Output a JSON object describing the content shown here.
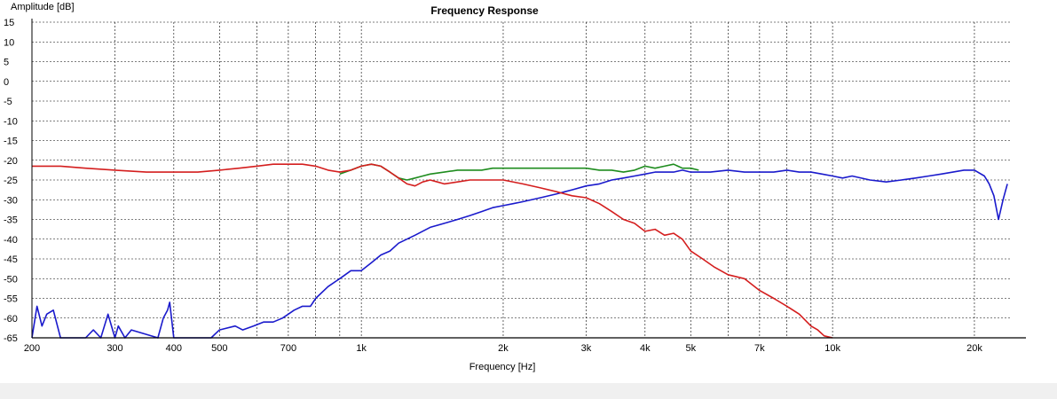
{
  "chart_data": {
    "type": "line",
    "title": "Frequency Response",
    "xlabel": "Frequency [Hz]",
    "ylabel": "Amplitude [dB]",
    "x_scale": "log",
    "xlim": [
      200,
      24000
    ],
    "ylim": [
      -65,
      15
    ],
    "grid": true,
    "major_x_gridlines": [
      200,
      300,
      400,
      500,
      600,
      700,
      800,
      900,
      1000,
      2000,
      3000,
      4000,
      5000,
      6000,
      7000,
      8000,
      9000,
      10000,
      20000
    ],
    "x_tick_values": [
      200,
      300,
      400,
      500,
      700,
      1000,
      2000,
      3000,
      4000,
      5000,
      7000,
      10000,
      20000
    ],
    "x_tick_labels": [
      "200",
      "300",
      "400",
      "500",
      "700",
      "1k",
      "2k",
      "3k",
      "4k",
      "5k",
      "7k",
      "10k",
      "20k"
    ],
    "y_ticks": [
      15,
      10,
      5,
      0,
      -5,
      -10,
      -15,
      -20,
      -25,
      -30,
      -35,
      -40,
      -45,
      -50,
      -55,
      -60,
      -65
    ],
    "y_tick_labels": [
      "15",
      "10",
      "5",
      "0",
      "-5",
      "-10",
      "-15",
      "-20",
      "-25",
      "-30",
      "-35",
      "-40",
      "-45",
      "-50",
      "-55",
      "-60",
      "-65"
    ],
    "series": [
      {
        "color": "#1a1acc",
        "x": [
          200,
          205,
          210,
          215,
          222,
          230,
          240,
          260,
          270,
          280,
          290,
          300,
          305,
          315,
          325,
          370,
          380,
          388,
          392,
          400,
          480,
          500,
          540,
          560,
          590,
          620,
          650,
          680,
          700,
          720,
          750,
          780,
          800,
          850,
          900,
          950,
          1000,
          1050,
          1100,
          1150,
          1200,
          1300,
          1400,
          1500,
          1600,
          1700,
          1800,
          1900,
          2000,
          2100,
          2200,
          2400,
          2600,
          2800,
          3000,
          3200,
          3400,
          3600,
          3800,
          4000,
          4200,
          4400,
          4600,
          4800,
          5000,
          5500,
          6000,
          6500,
          7000,
          7500,
          8000,
          8500,
          9000,
          9500,
          10000,
          10500,
          11000,
          12000,
          13000,
          14000,
          15000,
          16000,
          17000,
          18000,
          19000,
          20000,
          21000,
          21500,
          22000,
          22500,
          23000,
          23500
        ],
        "y": [
          -65,
          -57,
          -62,
          -59,
          -58,
          -65,
          -65,
          -65,
          -63,
          -65,
          -59,
          -65,
          -62,
          -65,
          -63,
          -65,
          -60,
          -58,
          -56,
          -65,
          -65,
          -63,
          -62,
          -63,
          -62,
          -61,
          -61,
          -60,
          -59,
          -58,
          -57,
          -57,
          -55,
          -52,
          -50,
          -48,
          -48,
          -46,
          -44,
          -43,
          -41,
          -39,
          -37,
          -36,
          -35,
          -34,
          -33,
          -32,
          -31.5,
          -31,
          -30.5,
          -29.5,
          -28.5,
          -27.5,
          -26.5,
          -26,
          -25,
          -24.5,
          -24,
          -23.5,
          -23,
          -23,
          -23,
          -22.5,
          -23,
          -23,
          -22.5,
          -23,
          -23,
          -23,
          -22.5,
          -23,
          -23,
          -23.5,
          -24,
          -24.5,
          -24,
          -25,
          -25.5,
          -25,
          -24.5,
          -24,
          -23.5,
          -23,
          -22.5,
          -22.5,
          -24,
          -26,
          -29,
          -35,
          -30,
          -26
        ]
      },
      {
        "color": "#1e8c1e",
        "x": [
          900,
          950,
          1000,
          1050,
          1100,
          1150,
          1200,
          1250,
          1300,
          1350,
          1400,
          1500,
          1600,
          1700,
          1800,
          1900,
          2000,
          2200,
          2400,
          2600,
          2800,
          3000,
          3200,
          3400,
          3600,
          3800,
          4000,
          4200,
          4400,
          4600,
          4800,
          5000,
          5200
        ],
        "y": [
          -23.5,
          -22.5,
          -21.5,
          -21,
          -21.5,
          -23,
          -24.5,
          -25,
          -24.5,
          -24,
          -23.5,
          -23,
          -22.5,
          -22.5,
          -22.5,
          -22,
          -22,
          -22,
          -22,
          -22,
          -22,
          -22,
          -22.5,
          -22.5,
          -23,
          -22.5,
          -21.5,
          -22,
          -21.5,
          -21,
          -22,
          -22,
          -22.5
        ]
      },
      {
        "color": "#d41e1e",
        "x": [
          200,
          230,
          260,
          300,
          350,
          400,
          450,
          500,
          550,
          600,
          650,
          700,
          750,
          800,
          850,
          900,
          950,
          1000,
          1050,
          1100,
          1150,
          1200,
          1250,
          1300,
          1350,
          1400,
          1450,
          1500,
          1600,
          1700,
          1800,
          1900,
          2000,
          2200,
          2400,
          2600,
          2800,
          3000,
          3200,
          3400,
          3600,
          3800,
          4000,
          4200,
          4400,
          4600,
          4800,
          5000,
          5300,
          5600,
          6000,
          6500,
          7000,
          7500,
          8000,
          8500,
          9000,
          9300,
          9600,
          10000
        ],
        "y": [
          -21.5,
          -21.5,
          -22,
          -22.5,
          -23,
          -23,
          -23,
          -22.5,
          -22,
          -21.5,
          -21,
          -21,
          -21,
          -21.5,
          -22.5,
          -23,
          -22.5,
          -21.5,
          -21,
          -21.5,
          -23,
          -24.5,
          -26,
          -26.5,
          -25.5,
          -25,
          -25.5,
          -26,
          -25.5,
          -25,
          -25,
          -25,
          -25,
          -26,
          -27,
          -28,
          -29,
          -29.5,
          -31,
          -33,
          -35,
          -36,
          -38,
          -37.5,
          -39,
          -38.5,
          -40,
          -43,
          -45,
          -47,
          -49,
          -50,
          -53,
          -55,
          -57,
          -59,
          -62,
          -63,
          -64.5,
          -65
        ]
      }
    ]
  }
}
